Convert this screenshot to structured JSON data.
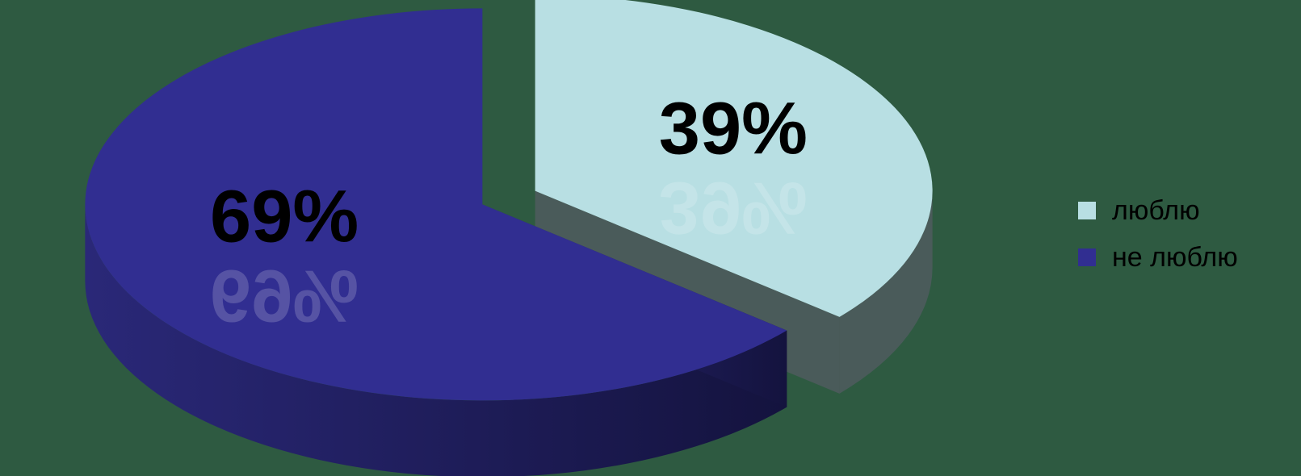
{
  "chart_data": {
    "type": "pie",
    "title": "",
    "style": "3d-exploded",
    "slices": [
      {
        "name": "люблю",
        "value": 39,
        "label": "39%",
        "color": "#b8dfe3",
        "side_color": "#4a5b5a"
      },
      {
        "name": "не люблю",
        "value": 69,
        "label": "69%",
        "color": "#312e91",
        "side_color": "#1f1d5e"
      }
    ],
    "legend_position": "right",
    "background_color": "#2e5a41"
  },
  "legend": {
    "items": [
      {
        "label": "люблю",
        "color": "#b8dfe3"
      },
      {
        "label": "не люблю",
        "color": "#312e91"
      }
    ]
  }
}
